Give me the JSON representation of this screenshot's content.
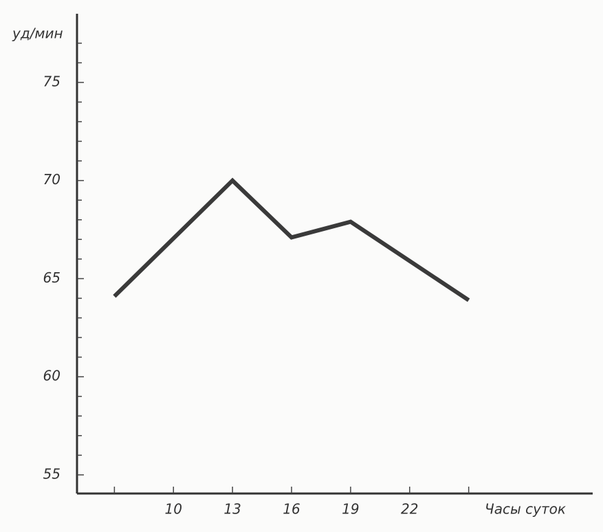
{
  "chart_data": {
    "type": "line",
    "y_label": "уд/мин",
    "x_label": "Часы суток",
    "x": [
      7,
      13,
      16,
      19,
      25
    ],
    "series": [
      {
        "values": [
          64.1,
          70,
          67.1,
          67.9,
          63.9
        ],
        "color": "#3a3a3a"
      }
    ],
    "xlim": [
      5.1,
      31.3
    ],
    "xticks": [
      10,
      13,
      16,
      19,
      22
    ],
    "xticks_minor": [
      7,
      25
    ],
    "ylim": [
      54.05,
      78.5
    ],
    "yticks": [
      55,
      60,
      65,
      70,
      75
    ],
    "yticks_minor": [
      56,
      57,
      58,
      59,
      61,
      62,
      63,
      64,
      66,
      67,
      68,
      69,
      71,
      72,
      73,
      74,
      76,
      77
    ],
    "grid": false
  }
}
